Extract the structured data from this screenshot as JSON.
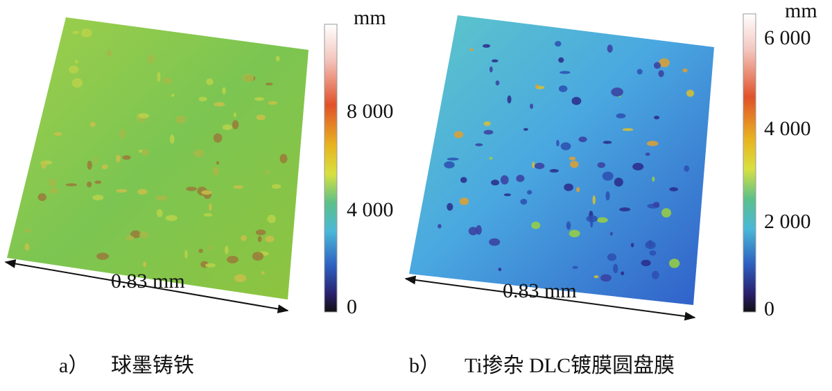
{
  "panels": [
    {
      "label": "a）",
      "caption": "球墨铸铁",
      "scale_label": "0.83 mm",
      "colorbar": {
        "unit": "mm",
        "ticks": [
          "8 000",
          "4 000",
          "0"
        ]
      }
    },
    {
      "label": "b）",
      "caption": "Ti掺杂 DLC镀膜圆盘膜",
      "scale_label": "0.83 mm",
      "colorbar": {
        "unit": "mm",
        "ticks": [
          "6 000",
          "4 000",
          "2 000",
          "0"
        ]
      }
    }
  ]
}
